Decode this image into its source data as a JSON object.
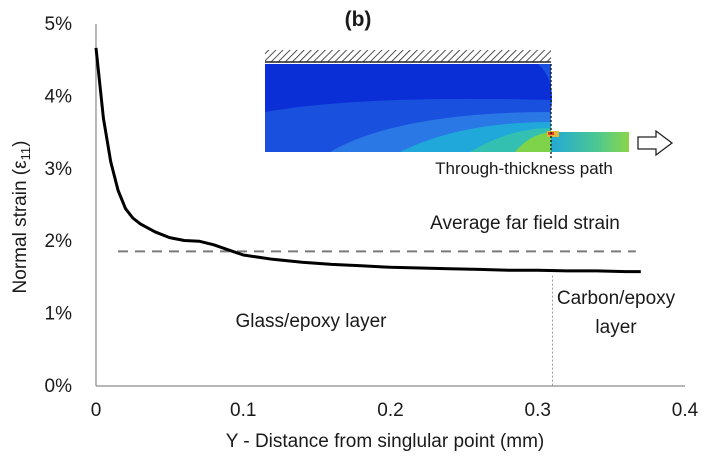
{
  "chart_data": {
    "type": "line",
    "panel_label": "(b)",
    "xlabel": "Y - Distance from singlular point (mm)",
    "ylabel_main": "Normal strain (ε",
    "ylabel_sub": "11",
    "ylabel_close": ")",
    "xlim": [
      0,
      0.4
    ],
    "ylim": [
      0,
      0.05
    ],
    "x_ticks": [
      0,
      0.1,
      0.2,
      0.3,
      0.4
    ],
    "x_tick_labels": [
      "0",
      "0.1",
      "0.2",
      "0.3",
      "0.4"
    ],
    "y_ticks": [
      0,
      0.01,
      0.02,
      0.03,
      0.04,
      0.05
    ],
    "y_tick_labels": [
      "0%",
      "1%",
      "2%",
      "3%",
      "4%",
      "5%"
    ],
    "grid": false,
    "legend": "none",
    "series": [
      {
        "x": [
          0,
          0.005,
          0.01,
          0.015,
          0.02,
          0.025,
          0.03,
          0.04,
          0.05,
          0.06,
          0.07,
          0.08,
          0.09,
          0.1,
          0.12,
          0.14,
          0.16,
          0.18,
          0.2,
          0.22,
          0.24,
          0.26,
          0.28,
          0.3,
          0.32,
          0.34,
          0.36,
          0.37
        ],
        "y": [
          0.0467,
          0.037,
          0.031,
          0.027,
          0.0245,
          0.0232,
          0.0224,
          0.0213,
          0.0205,
          0.0201,
          0.02,
          0.0195,
          0.0188,
          0.0181,
          0.0175,
          0.0171,
          0.0168,
          0.0166,
          0.0164,
          0.0163,
          0.0162,
          0.0161,
          0.016,
          0.016,
          0.0159,
          0.0159,
          0.0158,
          0.0158
        ]
      }
    ],
    "reference_line": {
      "label": "Average far field strain",
      "y": 0.0186,
      "x_range": [
        0.0,
        0.37
      ]
    },
    "boundary_line": {
      "x": 0.31
    },
    "region_labels": {
      "left": "Glass/epoxy layer",
      "right_line1": "Carbon/epoxy",
      "right_line2": "layer"
    },
    "inset": {
      "path_label": "Through-thickness path",
      "colors": {
        "deep_blue": "#0a2fd6",
        "mid_blue": "#1756e0",
        "light_blue": "#2c7be8",
        "cyan": "#20b3d8",
        "teal": "#33c4a8",
        "green": "#7fd34a",
        "yellow": "#d8e03a",
        "red": "#e23b2a"
      }
    }
  }
}
